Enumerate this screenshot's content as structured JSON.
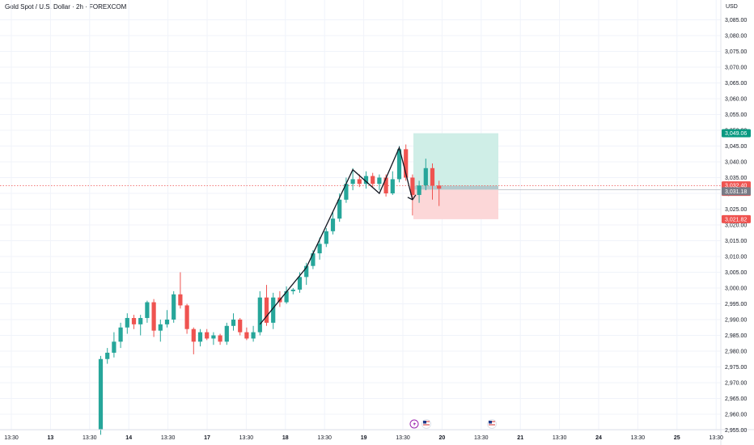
{
  "header": {
    "title": "Gold Spot / U.S. Dollar · 2h · FOREXCOM",
    "currency": "USD"
  },
  "colors": {
    "up": "#26a69a",
    "down": "#ef5350",
    "profit_zone": "#cfeee7",
    "loss_zone": "#fcd7d8",
    "current_price_line": "#ef5350"
  },
  "icons": [
    "lightning-event-icon",
    "us-flag-icon",
    "us-flag-icon"
  ],
  "chart_data": {
    "type": "candlestick",
    "ylim": [
      2952.5,
      3090
    ],
    "y_ticks": [
      "3,085.00",
      "3,080.00",
      "3,075.00",
      "3,070.00",
      "3,065.00",
      "3,060.00",
      "3,055.00",
      "3,050.00",
      "3,045.00",
      "3,040.00",
      "3,035.00",
      "3,030.00",
      "3,025.00",
      "3,020.00",
      "3,015.00",
      "3,010.00",
      "3,005.00",
      "3,000.00",
      "2,995.00",
      "2,990.00",
      "2,985.00",
      "2,980.00",
      "2,975.00",
      "2,970.00",
      "2,965.00",
      "2,960.00",
      "2,955.00"
    ],
    "x_ticks": [
      "13:30",
      "13",
      "13:30",
      "14",
      "13:30",
      "17",
      "13:30",
      "18",
      "13:30",
      "19",
      "13:30",
      "20",
      "13:30",
      "21",
      "13:30",
      "24",
      "13:30",
      "25",
      "13:30"
    ],
    "candles": [
      {
        "o": 2955.0,
        "h": 2978.5,
        "l": 2953.5,
        "c": 2977.5
      },
      {
        "o": 2977.5,
        "h": 2981.0,
        "l": 2976.0,
        "c": 2979.5
      },
      {
        "o": 2979.5,
        "h": 2986.0,
        "l": 2978.0,
        "c": 2983.0
      },
      {
        "o": 2983.0,
        "h": 2989.0,
        "l": 2981.0,
        "c": 2987.5
      },
      {
        "o": 2987.5,
        "h": 2992.0,
        "l": 2985.5,
        "c": 2990.5
      },
      {
        "o": 2990.5,
        "h": 2991.5,
        "l": 2987.0,
        "c": 2988.5
      },
      {
        "o": 2988.5,
        "h": 2991.5,
        "l": 2985.0,
        "c": 2990.5
      },
      {
        "o": 2990.5,
        "h": 2996.0,
        "l": 2989.0,
        "c": 2995.5
      },
      {
        "o": 2995.5,
        "h": 2996.5,
        "l": 2984.5,
        "c": 2986.5
      },
      {
        "o": 2986.5,
        "h": 2990.0,
        "l": 2983.0,
        "c": 2988.5
      },
      {
        "o": 2988.5,
        "h": 2993.0,
        "l": 2987.5,
        "c": 2990.0
      },
      {
        "o": 2990.0,
        "h": 2999.0,
        "l": 2989.0,
        "c": 2998.0
      },
      {
        "o": 2998.0,
        "h": 3005.0,
        "l": 2993.5,
        "c": 2994.5
      },
      {
        "o": 2994.5,
        "h": 2995.0,
        "l": 2985.5,
        "c": 2987.0
      },
      {
        "o": 2987.0,
        "h": 2987.5,
        "l": 2979.0,
        "c": 2983.0
      },
      {
        "o": 2983.0,
        "h": 2987.0,
        "l": 2981.5,
        "c": 2986.0
      },
      {
        "o": 2986.0,
        "h": 2987.0,
        "l": 2983.5,
        "c": 2984.0
      },
      {
        "o": 2984.0,
        "h": 2986.0,
        "l": 2982.0,
        "c": 2985.0
      },
      {
        "o": 2985.0,
        "h": 2985.5,
        "l": 2982.0,
        "c": 2983.0
      },
      {
        "o": 2983.0,
        "h": 2989.0,
        "l": 2982.0,
        "c": 2988.0
      },
      {
        "o": 2988.0,
        "h": 2992.0,
        "l": 2986.5,
        "c": 2990.0
      },
      {
        "o": 2990.0,
        "h": 2990.5,
        "l": 2985.0,
        "c": 2986.0
      },
      {
        "o": 2986.0,
        "h": 2987.5,
        "l": 2983.5,
        "c": 2984.0
      },
      {
        "o": 2984.0,
        "h": 2988.0,
        "l": 2983.0,
        "c": 2986.0
      },
      {
        "o": 2986.0,
        "h": 2999.0,
        "l": 2985.0,
        "c": 2997.0
      },
      {
        "o": 2997.0,
        "h": 3001.0,
        "l": 2988.0,
        "c": 2989.0
      },
      {
        "o": 2989.0,
        "h": 2998.5,
        "l": 2987.0,
        "c": 2997.0
      },
      {
        "o": 2997.0,
        "h": 2999.0,
        "l": 2994.0,
        "c": 2995.5
      },
      {
        "o": 2995.5,
        "h": 3000.5,
        "l": 2995.0,
        "c": 2999.0
      },
      {
        "o": 2999.0,
        "h": 3000.0,
        "l": 2998.0,
        "c": 2999.5
      },
      {
        "o": 2999.5,
        "h": 3005.0,
        "l": 2998.5,
        "c": 3003.5
      },
      {
        "o": 3003.5,
        "h": 3008.0,
        "l": 3001.0,
        "c": 3007.0
      },
      {
        "o": 3007.0,
        "h": 3012.0,
        "l": 3006.0,
        "c": 3011.0
      },
      {
        "o": 3011.0,
        "h": 3016.0,
        "l": 3009.0,
        "c": 3014.0
      },
      {
        "o": 3014.0,
        "h": 3019.0,
        "l": 3013.0,
        "c": 3018.0
      },
      {
        "o": 3018.0,
        "h": 3024.0,
        "l": 3017.0,
        "c": 3022.0
      },
      {
        "o": 3022.0,
        "h": 3030.0,
        "l": 3021.0,
        "c": 3028.0
      },
      {
        "o": 3028.0,
        "h": 3035.0,
        "l": 3027.0,
        "c": 3033.0
      },
      {
        "o": 3033.0,
        "h": 3038.0,
        "l": 3031.0,
        "c": 3034.5
      },
      {
        "o": 3034.5,
        "h": 3036.0,
        "l": 3032.0,
        "c": 3033.0
      },
      {
        "o": 3033.0,
        "h": 3037.0,
        "l": 3031.5,
        "c": 3035.5
      },
      {
        "o": 3035.5,
        "h": 3036.5,
        "l": 3032.0,
        "c": 3033.0
      },
      {
        "o": 3033.0,
        "h": 3036.0,
        "l": 3031.0,
        "c": 3035.0
      },
      {
        "o": 3035.0,
        "h": 3036.0,
        "l": 3029.0,
        "c": 3030.0
      },
      {
        "o": 3030.0,
        "h": 3037.0,
        "l": 3029.5,
        "c": 3034.5
      },
      {
        "o": 3034.5,
        "h": 3045.0,
        "l": 3033.5,
        "c": 3044.0
      },
      {
        "o": 3044.0,
        "h": 3045.5,
        "l": 3034.0,
        "c": 3035.0
      },
      {
        "o": 3035.0,
        "h": 3036.0,
        "l": 3023.0,
        "c": 3029.5
      },
      {
        "o": 3029.5,
        "h": 3034.0,
        "l": 3027.0,
        "c": 3032.5
      },
      {
        "o": 3032.5,
        "h": 3041.0,
        "l": 3031.0,
        "c": 3038.0
      },
      {
        "o": 3038.0,
        "h": 3039.5,
        "l": 3028.0,
        "c": 3032.5
      },
      {
        "o": 3032.5,
        "h": 3034.0,
        "l": 3026.0,
        "c": 3031.5
      }
    ],
    "pattern_path": [
      [
        24,
        2988.5
      ],
      [
        31,
        3006.5
      ],
      [
        38,
        3037.5
      ],
      [
        42,
        3030.0
      ],
      [
        45,
        3044.5
      ],
      [
        47,
        3028.0
      ]
    ],
    "current_price": {
      "price": "3,032.40",
      "countdown": "34:55",
      "value": 3032.4
    },
    "position": {
      "target": {
        "label": "3,049.06",
        "value": 3049.06
      },
      "entry": {
        "label": "3,031.18",
        "value": 3031.18
      },
      "stop": {
        "label": "3,021.82",
        "value": 3021.82
      }
    }
  }
}
